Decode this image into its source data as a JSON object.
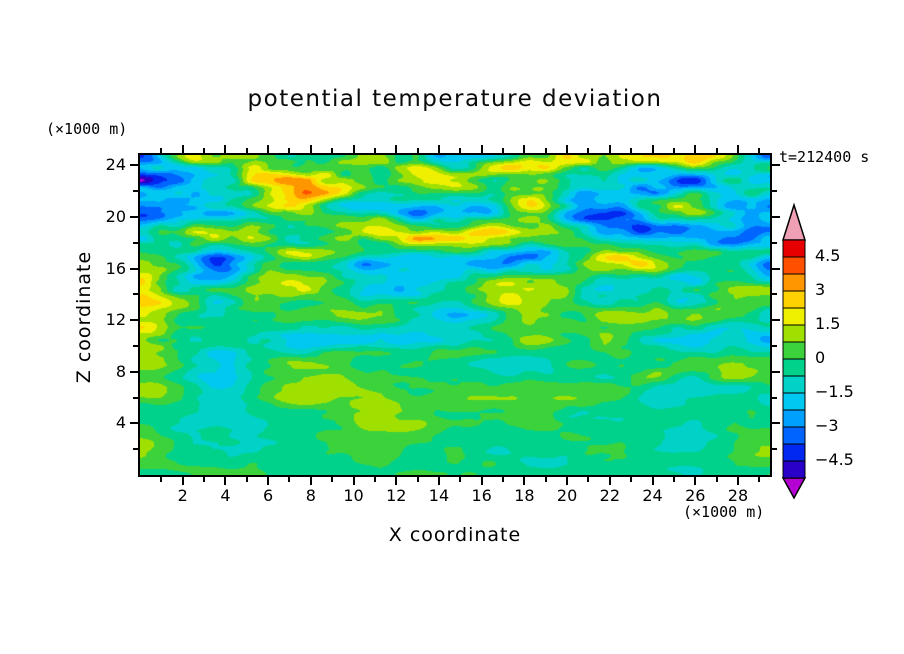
{
  "title": "potential temperature deviation",
  "time_label": "t=212400 s",
  "axes": {
    "x_label": "X coordinate",
    "y_label": "Z coordinate",
    "x_unit_label": "(×1000 m)",
    "y_unit_label": "(×1000 m)"
  },
  "chart_data": {
    "type": "heatmap",
    "title": "potential temperature deviation",
    "xlabel": "X coordinate",
    "ylabel": "Z coordinate",
    "x_unit": "×1000 m",
    "y_unit": "×1000 m",
    "time_annotation": "t=212400 s",
    "xlim": [
      0,
      29.5
    ],
    "ylim": [
      0,
      24.8
    ],
    "x_ticks": [
      2,
      4,
      6,
      8,
      10,
      12,
      14,
      16,
      18,
      20,
      22,
      24,
      26,
      28
    ],
    "y_ticks": [
      4,
      8,
      12,
      16,
      20,
      24
    ],
    "grid": false,
    "legend_position": "colorbar-right",
    "colorbar": {
      "orientation": "vertical-right",
      "tick_labels": [
        "4.5",
        "3",
        "1.5",
        "0",
        "−1.5",
        "−3",
        "−4.5"
      ],
      "tick_values": [
        4.5,
        3,
        1.5,
        0,
        -1.5,
        -3,
        -4.5
      ],
      "levels": [
        -5.25,
        -4.5,
        -3.75,
        -3,
        -2.25,
        -1.5,
        -0.75,
        0,
        0.75,
        1.5,
        2.25,
        3,
        3.75,
        4.5,
        5.25
      ],
      "colors_low_to_high": [
        "#b400d2",
        "#2800c8",
        "#0028f0",
        "#0064ff",
        "#00a0ff",
        "#00c8f0",
        "#00d2c8",
        "#00d28c",
        "#3cd23c",
        "#a0e000",
        "#eef000",
        "#ffd200",
        "#ff9600",
        "#ff5000",
        "#e60000",
        "#f0a0b4"
      ],
      "under_color": "#b400d2",
      "over_color": "#f0a0b4"
    },
    "field_summary": {
      "description": "Turbulent x-z cross-section of potential temperature deviation; background mostly within ±0.75 (green above 0, teal below 0), horizontally elongated eddies, stronger ±3 to ±5 patches (yellow/orange/red and blue/dark-blue) in the upper half, smooth near-zero layer at the bottom",
      "dominant_band": [
        -0.75,
        0.75
      ],
      "max_band_visible": [
        4.5,
        5.25
      ],
      "min_band_visible": [
        -5.25,
        -4.5
      ]
    }
  }
}
